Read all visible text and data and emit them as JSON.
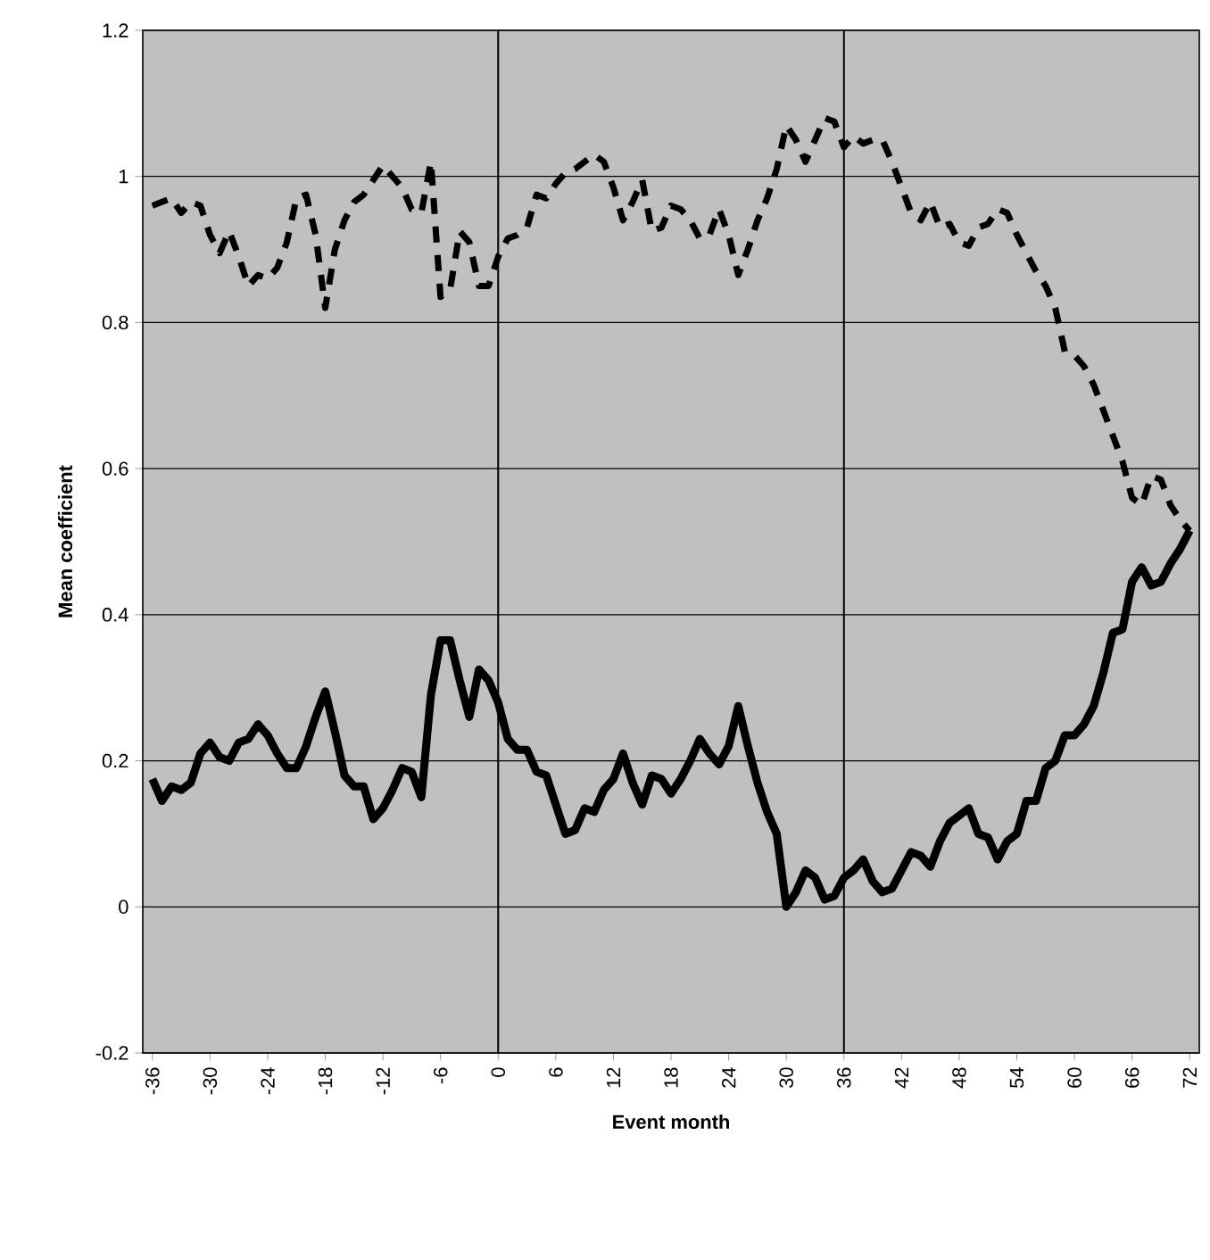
{
  "chart_data": {
    "type": "line",
    "xlabel": "Event month",
    "ylabel": "Mean coefficient",
    "x": [
      -36,
      -35,
      -34,
      -33,
      -32,
      -31,
      -30,
      -29,
      -28,
      -27,
      -26,
      -25,
      -24,
      -23,
      -22,
      -21,
      -20,
      -19,
      -18,
      -17,
      -16,
      -15,
      -14,
      -13,
      -12,
      -11,
      -10,
      -9,
      -8,
      -7,
      -6,
      -5,
      -4,
      -3,
      -2,
      -1,
      0,
      1,
      2,
      3,
      4,
      5,
      6,
      7,
      8,
      9,
      10,
      11,
      12,
      13,
      14,
      15,
      16,
      17,
      18,
      19,
      20,
      21,
      22,
      23,
      24,
      25,
      26,
      27,
      28,
      29,
      30,
      31,
      32,
      33,
      34,
      35,
      36,
      37,
      38,
      39,
      40,
      41,
      42,
      43,
      44,
      45,
      46,
      47,
      48,
      49,
      50,
      51,
      52,
      53,
      54,
      55,
      56,
      57,
      58,
      59,
      60,
      61,
      62,
      63,
      64,
      65,
      66,
      67,
      68,
      69,
      70,
      71,
      72
    ],
    "series": [
      {
        "color": "#000000",
        "line_style": "solid",
        "values": [
          0.175,
          0.145,
          0.165,
          0.16,
          0.17,
          0.21,
          0.225,
          0.205,
          0.2,
          0.225,
          0.23,
          0.25,
          0.235,
          0.21,
          0.19,
          0.19,
          0.22,
          0.26,
          0.295,
          0.24,
          0.18,
          0.165,
          0.165,
          0.12,
          0.135,
          0.16,
          0.19,
          0.185,
          0.15,
          0.29,
          0.365,
          0.365,
          0.31,
          0.26,
          0.325,
          0.31,
          0.28,
          0.23,
          0.215,
          0.215,
          0.185,
          0.18,
          0.14,
          0.1,
          0.105,
          0.135,
          0.13,
          0.16,
          0.175,
          0.21,
          0.17,
          0.14,
          0.18,
          0.175,
          0.155,
          0.175,
          0.2,
          0.23,
          0.21,
          0.195,
          0.22,
          0.275,
          0.22,
          0.17,
          0.13,
          0.1,
          0.0,
          0.02,
          0.05,
          0.04,
          0.01,
          0.015,
          0.04,
          0.05,
          0.065,
          0.035,
          0.02,
          0.025,
          0.05,
          0.075,
          0.07,
          0.055,
          0.09,
          0.115,
          0.125,
          0.135,
          0.1,
          0.095,
          0.065,
          0.09,
          0.1,
          0.145,
          0.145,
          0.19,
          0.2,
          0.235,
          0.235,
          0.25,
          0.275,
          0.32,
          0.375,
          0.38,
          0.445,
          0.465,
          0.44,
          0.445,
          0.47,
          0.49,
          0.515
        ]
      },
      {
        "color": "#000000",
        "line_style": "dashed",
        "values": [
          0.96,
          0.965,
          0.97,
          0.95,
          0.965,
          0.96,
          0.92,
          0.895,
          0.925,
          0.89,
          0.85,
          0.865,
          0.86,
          0.875,
          0.91,
          0.97,
          0.975,
          0.92,
          0.82,
          0.9,
          0.94,
          0.965,
          0.975,
          0.995,
          1.015,
          1.0,
          0.985,
          0.955,
          0.95,
          1.02,
          0.835,
          0.845,
          0.925,
          0.91,
          0.85,
          0.85,
          0.89,
          0.915,
          0.92,
          0.93,
          0.975,
          0.97,
          0.99,
          1.005,
          1.01,
          1.02,
          1.03,
          1.02,
          0.985,
          0.94,
          0.965,
          0.995,
          0.925,
          0.93,
          0.96,
          0.955,
          0.94,
          0.915,
          0.92,
          0.955,
          0.92,
          0.865,
          0.9,
          0.94,
          0.97,
          1.01,
          1.07,
          1.05,
          1.02,
          1.05,
          1.08,
          1.075,
          1.04,
          1.055,
          1.045,
          1.05,
          1.05,
          1.02,
          0.985,
          0.95,
          0.94,
          0.965,
          0.93,
          0.935,
          0.91,
          0.905,
          0.93,
          0.935,
          0.955,
          0.95,
          0.92,
          0.895,
          0.87,
          0.85,
          0.82,
          0.76,
          0.755,
          0.74,
          0.715,
          0.68,
          0.645,
          0.61,
          0.56,
          0.55,
          0.59,
          0.585,
          0.55,
          0.53,
          0.515
        ]
      }
    ],
    "xlim": [
      -37,
      73
    ],
    "xticks": [
      -36,
      -30,
      -24,
      -18,
      -12,
      -6,
      0,
      6,
      12,
      18,
      24,
      30,
      36,
      42,
      48,
      54,
      60,
      66,
      72
    ],
    "ylim": [
      -0.2,
      1.2
    ],
    "yticks": [
      -0.2,
      0,
      0.2,
      0.4,
      0.6,
      0.8,
      1,
      1.2
    ],
    "grid": "y",
    "ref_lines": [
      {
        "axis": "x",
        "value": 0,
        "color": "#000000"
      },
      {
        "axis": "x",
        "value": 36,
        "color": "#000000"
      }
    ]
  }
}
